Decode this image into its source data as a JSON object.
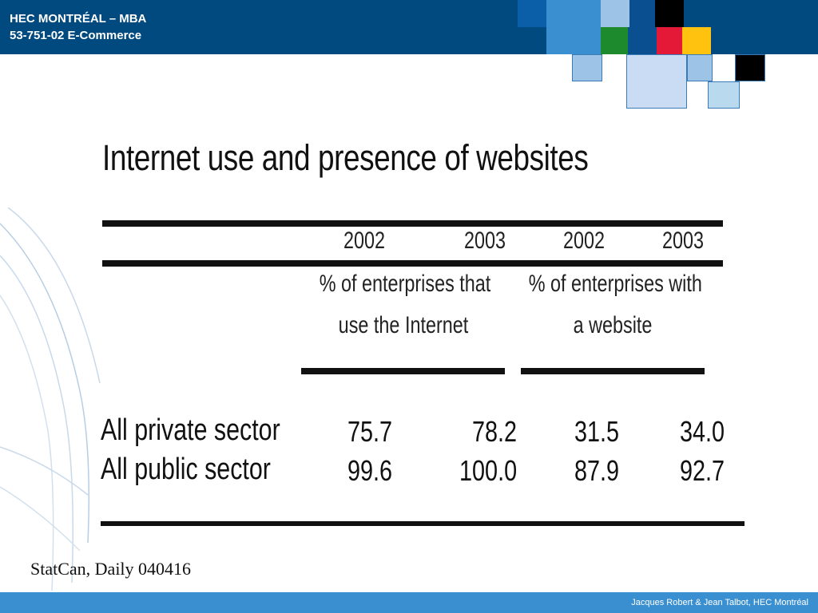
{
  "header": {
    "line1": "HEC MONTRÉAL – MBA",
    "line2": "53-751-02 E-Commerce"
  },
  "slide": {
    "title": "Internet use and presence of websites",
    "table": {
      "years": [
        "2002",
        "2003",
        "2002",
        "2003"
      ],
      "groups": [
        {
          "line1": "% of enterprises that",
          "line2": "use the Internet"
        },
        {
          "line1": "% of enterprises with",
          "line2": "a website"
        }
      ],
      "rows": [
        {
          "label": "All private sector",
          "values": [
            "75.7",
            "78.2",
            "31.5",
            "34.0"
          ]
        },
        {
          "label": "All public sector",
          "values": [
            "99.6",
            "100.0",
            "87.9",
            "92.7"
          ]
        }
      ]
    },
    "source": "StatCan, Daily 040416"
  },
  "footer": {
    "credit": "Jacques Robert & Jean Talbot,  HEC Montréal"
  },
  "colors": {
    "header_bg": "#004a80",
    "footer_bg": "#3a8fd0",
    "decor_blue": "#3a8fd0",
    "decor_light": "#9dc3e6",
    "decor_pale": "#c9dcf3",
    "decor_green": "#1e8a2e",
    "decor_red": "#e31937",
    "decor_yellow": "#ffc20e",
    "decor_black": "#000000"
  }
}
